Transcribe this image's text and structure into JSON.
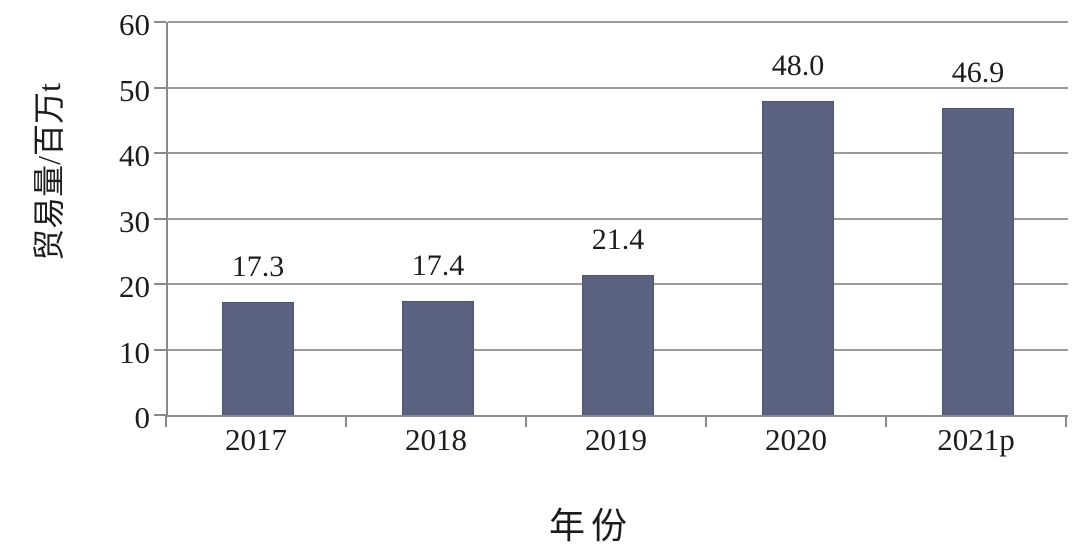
{
  "chart_data": {
    "type": "bar",
    "title": "",
    "xlabel": "年份",
    "ylabel": "贸易量/百万t",
    "categories": [
      "2017",
      "2018",
      "2019",
      "2020",
      "2021p"
    ],
    "values": [
      17.3,
      17.4,
      21.4,
      48.0,
      46.9
    ],
    "value_labels": [
      "17.3",
      "17.4",
      "21.4",
      "48.0",
      "46.9"
    ],
    "series_name": "贸易量",
    "ylim": [
      0,
      60
    ],
    "yticks": [
      0,
      10,
      20,
      30,
      40,
      50,
      60
    ],
    "grid": "horizontal",
    "legend": "none",
    "colors": {
      "bar": "#5a6280",
      "bar_border": "#4b5570",
      "grid": "#9b9b9b",
      "axis": "#8a8a8a",
      "text": "#1c1c1c",
      "background": "#ffffff"
    }
  }
}
